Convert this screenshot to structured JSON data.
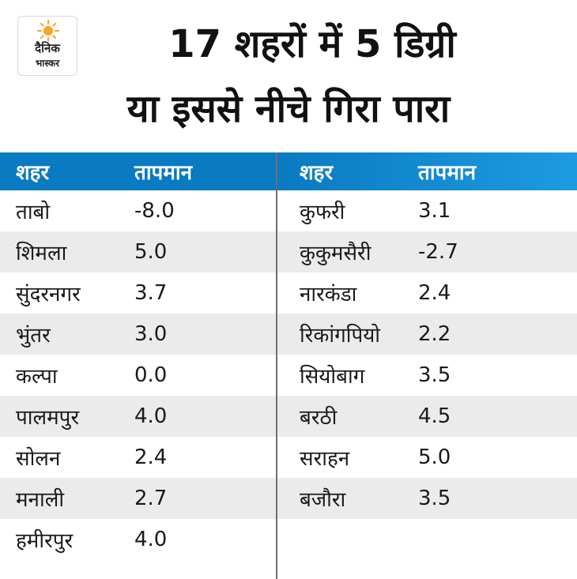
{
  "logo": {
    "line1": "दैनिक",
    "line2": "भास्कर"
  },
  "title": {
    "line1": "17 शहरों में 5 डिग्री",
    "line2": "या इससे नीचे गिरा पारा"
  },
  "headers": {
    "city": "शहर",
    "temperature": "तापमान"
  },
  "left_rows": [
    {
      "city": "ताबो",
      "temp": "-8.0"
    },
    {
      "city": "शिमला",
      "temp": "5.0"
    },
    {
      "city": "सुंदरनगर",
      "temp": "3.7"
    },
    {
      "city": "भुंतर",
      "temp": "3.0"
    },
    {
      "city": "कल्पा",
      "temp": "0.0"
    },
    {
      "city": "पालमपुर",
      "temp": "4.0"
    },
    {
      "city": "सोलन",
      "temp": "2.4"
    },
    {
      "city": "मनाली",
      "temp": "2.7"
    },
    {
      "city": "हमीरपुर",
      "temp": "4.0"
    }
  ],
  "right_rows": [
    {
      "city": "कुफरी",
      "temp": "3.1"
    },
    {
      "city": "कुकुमसैरी",
      "temp": "-2.7"
    },
    {
      "city": "नारकंडा",
      "temp": "2.4"
    },
    {
      "city": "रिकांगपियो",
      "temp": "2.2"
    },
    {
      "city": "सियोबाग",
      "temp": "3.5"
    },
    {
      "city": "बरठी",
      "temp": "4.5"
    },
    {
      "city": "सराहन",
      "temp": "5.0"
    },
    {
      "city": "बजौरा",
      "temp": "3.5"
    }
  ],
  "colors": {
    "header_blue": "#0a7ac2",
    "stripe_gray": "#ebebeb",
    "sun_orange": "#f5a623"
  }
}
